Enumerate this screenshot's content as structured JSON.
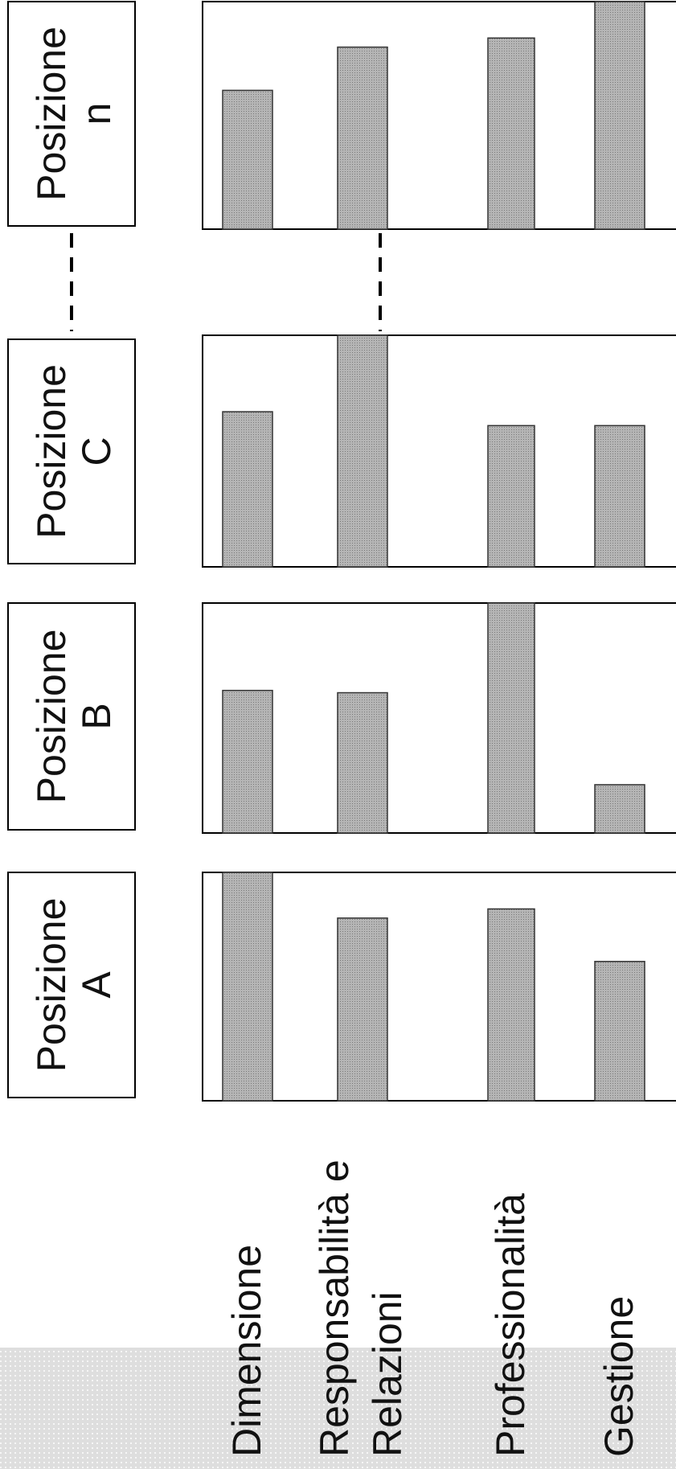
{
  "chart_data": {
    "type": "bar",
    "orientation": "rotated-90-ccw",
    "categories": [
      "Dimensione",
      "Responsabilità e Relazioni",
      "Professionalità",
      "Gestione"
    ],
    "category_label_lines": [
      [
        "Dimensione"
      ],
      [
        "Responsabilità e",
        "Relazioni"
      ],
      [
        "Professionalità"
      ],
      [
        "Gestione"
      ]
    ],
    "series": [
      {
        "name": "Posizione A",
        "name_lines": [
          "Posizione",
          "A"
        ],
        "values": [
          100,
          80,
          84,
          61
        ]
      },
      {
        "name": "Posizione B",
        "name_lines": [
          "Posizione",
          "B"
        ],
        "values": [
          62,
          61,
          100,
          21
        ]
      },
      {
        "name": "Posizione C",
        "name_lines": [
          "Posizione",
          "C"
        ],
        "values": [
          67,
          100,
          61,
          61
        ]
      },
      {
        "name": "Posizione n",
        "name_lines": [
          "Posizione",
          "n"
        ],
        "values": [
          61,
          80,
          84,
          100
        ]
      }
    ],
    "ylim": [
      0,
      100
    ],
    "grid": false,
    "legend": "none",
    "colors": {
      "bar": "#a8a8a8",
      "category_band": "#d6d6d6",
      "stroke": "#000000"
    }
  }
}
